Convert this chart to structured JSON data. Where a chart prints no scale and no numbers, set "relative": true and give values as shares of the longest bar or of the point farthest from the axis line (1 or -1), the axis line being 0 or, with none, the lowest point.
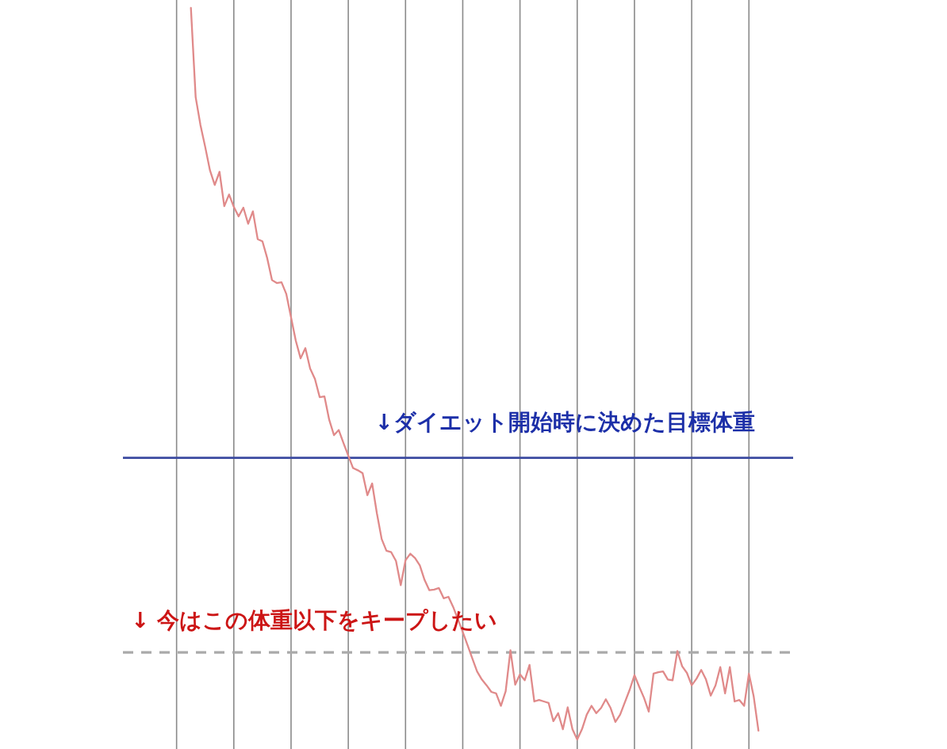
{
  "chart_data": {
    "type": "line",
    "relative": true,
    "categories": [
      null,
      null,
      null,
      null,
      null,
      null,
      null,
      null,
      null,
      null,
      null,
      null,
      null,
      null,
      null,
      null,
      null,
      null,
      null,
      null,
      null,
      null,
      null,
      null,
      null,
      null,
      null,
      null,
      null,
      null,
      null,
      null,
      null,
      null,
      null,
      null,
      null,
      null,
      null,
      null,
      null,
      null,
      null,
      null,
      null,
      null,
      null,
      null,
      null,
      null,
      null,
      null,
      null,
      null,
      null,
      null,
      null,
      null,
      null,
      null,
      null,
      null,
      null,
      null,
      null,
      null,
      null,
      null,
      null,
      null,
      null,
      null,
      null,
      null,
      null,
      null,
      null,
      null,
      null,
      null,
      null,
      null,
      null,
      null,
      null,
      null,
      null,
      null,
      null,
      null,
      null,
      null,
      null,
      null,
      null,
      null,
      null,
      null,
      null,
      null,
      null,
      null,
      null,
      null,
      null,
      null,
      null,
      null,
      null,
      null,
      null,
      null,
      null,
      null,
      null,
      null,
      null,
      null,
      null,
      null
    ],
    "series": [
      {
        "color": "#e08a8a",
        "values": [
          1.0,
          0.878,
          0.84,
          0.81,
          0.778,
          0.758,
          0.776,
          0.729,
          0.745,
          0.728,
          0.715,
          0.727,
          0.705,
          0.722,
          0.684,
          0.681,
          0.658,
          0.628,
          0.624,
          0.625,
          0.609,
          0.577,
          0.545,
          0.521,
          0.535,
          0.507,
          0.493,
          0.468,
          0.469,
          0.437,
          0.416,
          0.423,
          0.405,
          0.388,
          0.371,
          0.368,
          0.364,
          0.334,
          0.35,
          0.309,
          0.274,
          0.258,
          0.256,
          0.244,
          0.211,
          0.245,
          0.254,
          0.248,
          0.238,
          0.218,
          0.204,
          0.205,
          0.207,
          0.193,
          0.195,
          0.181,
          0.164,
          0.147,
          0.129,
          0.111,
          0.093,
          0.082,
          0.074,
          0.065,
          0.063,
          0.046,
          0.066,
          0.122,
          0.075,
          0.089,
          0.081,
          0.102,
          0.052,
          0.054,
          0.052,
          0.05,
          0.025,
          0.036,
          0.014,
          0.044,
          0.014,
          0.0,
          0.014,
          0.034,
          0.046,
          0.036,
          0.043,
          0.055,
          0.043,
          0.024,
          0.034,
          0.051,
          0.068,
          0.088,
          0.072,
          0.057,
          0.038,
          0.09,
          0.092,
          0.093,
          0.082,
          0.081,
          0.121,
          0.1,
          0.091,
          0.074,
          0.083,
          0.095,
          0.082,
          0.06,
          0.074,
          0.099,
          0.063,
          0.099,
          0.052,
          0.054,
          0.046,
          0.09,
          0.059,
          0.012
        ]
      }
    ],
    "grid": "x",
    "ref_lines": [
      {
        "axis": "y",
        "value": 0.385,
        "label": "↓ダイエット開始時に決めた目標体重",
        "color": "#3b4aa0"
      },
      {
        "axis": "y",
        "value": 0.119,
        "label": "↓ 今はこの体重以下をキープしたい",
        "color": "#aaaaaa",
        "line_style": "dashed"
      }
    ]
  }
}
